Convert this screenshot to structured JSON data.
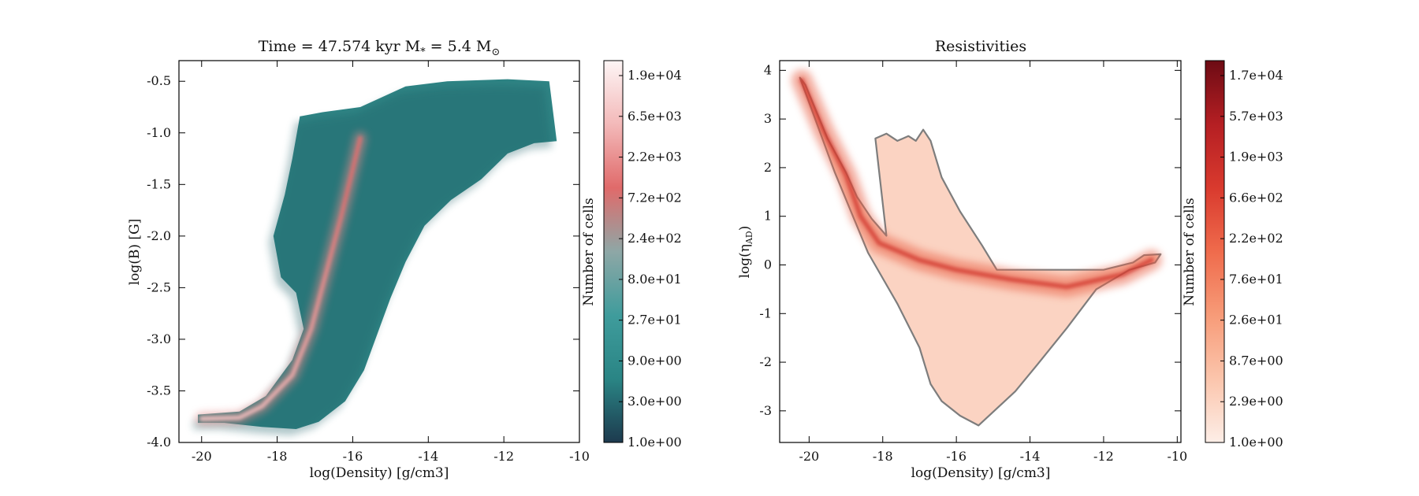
{
  "chart_data": [
    {
      "type": "heatmap",
      "title": "Time = 47.574 kyr    M",
      "title_sub": "*",
      "title_tail": " = 5.4 M",
      "title_sun": "⊙",
      "xlabel": "log(Density) [g/cm3]",
      "ylabel": "log(B) [G]",
      "xlim": [
        -20.6,
        -10.0
      ],
      "ylim": [
        -4.0,
        -0.3
      ],
      "x_ticks": [
        -20,
        -18,
        -16,
        -14,
        -12,
        -10
      ],
      "x_tick_labels": [
        "-20",
        "-18",
        "-16",
        "-14",
        "-12",
        "-10"
      ],
      "y_ticks": [
        -4.0,
        -3.5,
        -3.0,
        -2.5,
        -2.0,
        -1.5,
        -1.0,
        -0.5
      ],
      "y_tick_labels": [
        "-4.0",
        "-3.5",
        "-3.0",
        "-2.5",
        "-2.0",
        "-1.5",
        "-1.0",
        "-0.5"
      ],
      "region_outline": [
        [
          -20.1,
          -3.73
        ],
        [
          -19.0,
          -3.7
        ],
        [
          -18.3,
          -3.55
        ],
        [
          -17.6,
          -3.2
        ],
        [
          -17.3,
          -2.9
        ],
        [
          -17.5,
          -2.55
        ],
        [
          -17.9,
          -2.4
        ],
        [
          -18.1,
          -2.0
        ],
        [
          -17.8,
          -1.6
        ],
        [
          -17.6,
          -1.25
        ],
        [
          -17.4,
          -0.84
        ],
        [
          -16.8,
          -0.8
        ],
        [
          -15.8,
          -0.75
        ],
        [
          -14.6,
          -0.55
        ],
        [
          -13.5,
          -0.5
        ],
        [
          -11.9,
          -0.48
        ],
        [
          -10.8,
          -0.5
        ],
        [
          -10.6,
          -1.08
        ],
        [
          -11.2,
          -1.1
        ],
        [
          -11.9,
          -1.2
        ],
        [
          -12.6,
          -1.45
        ],
        [
          -13.4,
          -1.65
        ],
        [
          -14.1,
          -1.9
        ],
        [
          -14.6,
          -2.25
        ],
        [
          -15.0,
          -2.6
        ],
        [
          -15.3,
          -2.9
        ],
        [
          -15.7,
          -3.3
        ],
        [
          -16.2,
          -3.6
        ],
        [
          -16.9,
          -3.8
        ],
        [
          -17.5,
          -3.87
        ],
        [
          -18.4,
          -3.85
        ],
        [
          -19.4,
          -3.81
        ],
        [
          -20.1,
          -3.81
        ]
      ],
      "ridge": [
        [
          -20.0,
          -3.77
        ],
        [
          -19.0,
          -3.76
        ],
        [
          -18.4,
          -3.65
        ],
        [
          -17.6,
          -3.35
        ],
        [
          -17.1,
          -2.9
        ],
        [
          -16.7,
          -2.35
        ],
        [
          -16.3,
          -1.8
        ],
        [
          -16.0,
          -1.35
        ],
        [
          -15.8,
          -1.05
        ]
      ],
      "colorbar": {
        "label": "Number of cells",
        "scale": "log",
        "colors": [
          "#1d3a4e",
          "#2a8585",
          "#3f9c9c",
          "#8ea7a6",
          "#e06a6a",
          "#f3b9b9",
          "#fdf5f5"
        ],
        "tick_labels": [
          "1.0e+00",
          "3.0e+00",
          "9.0e+00",
          "2.7e+01",
          "8.0e+01",
          "2.4e+02",
          "7.2e+02",
          "2.2e+03",
          "6.5e+03",
          "1.9e+04"
        ]
      }
    },
    {
      "type": "heatmap",
      "title": "Resistivities",
      "xlabel": "log(Density) [g/cm3]",
      "ylabel": "log(η",
      "ylabel_sub": "AD",
      "ylabel_tail": ")",
      "xlim": [
        -20.8,
        -9.9
      ],
      "ylim": [
        -3.65,
        4.2
      ],
      "x_ticks": [
        -20,
        -18,
        -16,
        -14,
        -12,
        -10
      ],
      "x_tick_labels": [
        "-20",
        "-18",
        "-16",
        "-14",
        "-12",
        "-10"
      ],
      "y_ticks": [
        -3,
        -2,
        -1,
        0,
        1,
        2,
        3,
        4
      ],
      "y_tick_labels": [
        "-3",
        "-2",
        "-1",
        "0",
        "1",
        "2",
        "3",
        "4"
      ],
      "region_outline": [
        [
          -20.25,
          3.85
        ],
        [
          -20.1,
          3.7
        ],
        [
          -19.5,
          2.6
        ],
        [
          -19.0,
          1.9
        ],
        [
          -18.7,
          1.4
        ],
        [
          -18.3,
          0.95
        ],
        [
          -17.9,
          0.6
        ],
        [
          -18.2,
          2.6
        ],
        [
          -17.9,
          2.7
        ],
        [
          -17.6,
          2.55
        ],
        [
          -17.3,
          2.65
        ],
        [
          -17.1,
          2.55
        ],
        [
          -16.9,
          2.78
        ],
        [
          -16.7,
          2.55
        ],
        [
          -16.4,
          1.8
        ],
        [
          -15.9,
          1.1
        ],
        [
          -15.3,
          0.4
        ],
        [
          -14.9,
          -0.1
        ],
        [
          -13.5,
          -0.1
        ],
        [
          -12.0,
          -0.1
        ],
        [
          -11.2,
          0.05
        ],
        [
          -10.9,
          0.2
        ],
        [
          -10.45,
          0.22
        ],
        [
          -10.6,
          0.05
        ],
        [
          -11.3,
          -0.1
        ],
        [
          -12.2,
          -0.5
        ],
        [
          -13.0,
          -1.3
        ],
        [
          -13.8,
          -2.05
        ],
        [
          -14.4,
          -2.6
        ],
        [
          -14.9,
          -2.95
        ],
        [
          -15.4,
          -3.3
        ],
        [
          -15.9,
          -3.1
        ],
        [
          -16.4,
          -2.8
        ],
        [
          -16.7,
          -2.45
        ],
        [
          -17.0,
          -1.7
        ],
        [
          -17.6,
          -0.8
        ],
        [
          -18.4,
          0.25
        ],
        [
          -19.3,
          1.9
        ],
        [
          -20.25,
          3.85
        ]
      ],
      "dense_band": [
        [
          -20.2,
          3.8
        ],
        [
          -19.6,
          2.75
        ],
        [
          -19.0,
          1.85
        ],
        [
          -18.6,
          1.0
        ],
        [
          -18.1,
          0.45
        ],
        [
          -17.0,
          0.1
        ],
        [
          -16.0,
          -0.1
        ],
        [
          -14.5,
          -0.3
        ],
        [
          -13.0,
          -0.45
        ],
        [
          -11.5,
          -0.2
        ],
        [
          -10.7,
          0.1
        ]
      ],
      "colorbar": {
        "label": "Number of cells",
        "scale": "log",
        "colors": [
          "#fdeee7",
          "#fbc5ac",
          "#f79b78",
          "#ef6b4c",
          "#d93a2e",
          "#b51f23",
          "#6d0b14"
        ],
        "tick_labels": [
          "1.0e+00",
          "2.9e+00",
          "8.7e+00",
          "2.6e+01",
          "7.6e+01",
          "2.2e+02",
          "6.6e+02",
          "1.9e+03",
          "5.7e+03",
          "1.7e+04"
        ]
      }
    }
  ]
}
